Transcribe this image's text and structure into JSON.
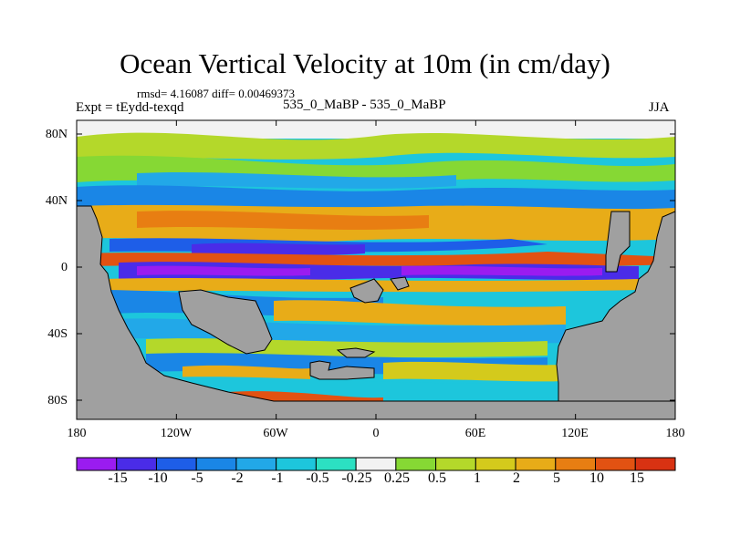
{
  "title": "Ocean Vertical Velocity at 10m (in cm/day)",
  "stats": "rmsd= 4.16087 diff= 0.00469373",
  "experiment_label": "Expt = tEydd-texqd",
  "comparison_label": "535_0_MaBP - 535_0_MaBP",
  "season": "JJA",
  "lat_ticks": [
    "80N",
    "40N",
    "0",
    "40S",
    "80S"
  ],
  "lon_ticks": [
    "180",
    "120W",
    "60W",
    "0",
    "60E",
    "120E",
    "180"
  ],
  "colorbar": {
    "labels": [
      "-15",
      "-10",
      "-5",
      "-2",
      "-1",
      "-0.5",
      "-0.25",
      "0.25",
      "0.5",
      "1",
      "2",
      "5",
      "10",
      "15"
    ],
    "colors": [
      "#9a1cf0",
      "#4a2ce8",
      "#1e5ee8",
      "#1a86e6",
      "#22a8e8",
      "#1dc6dc",
      "#2ce0c2",
      "#f2f2f2",
      "#86d834",
      "#b4d82a",
      "#d4ca1c",
      "#e8ac18",
      "#e87e12",
      "#e25212",
      "#d83212"
    ]
  },
  "colors": {
    "land": "#a0a0a0",
    "frame": "#000000"
  }
}
